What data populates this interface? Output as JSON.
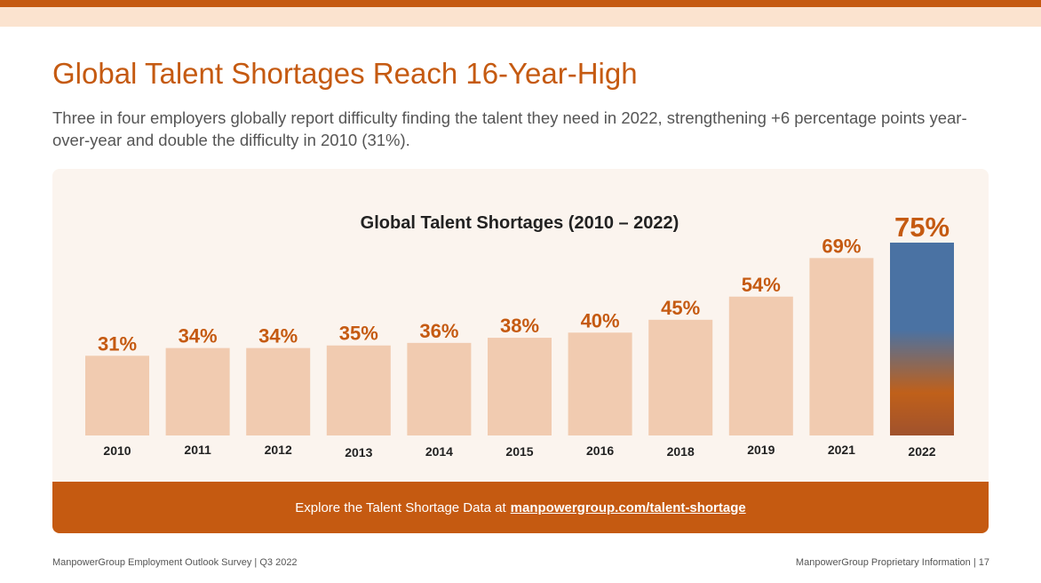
{
  "header": {
    "title": "Global Talent Shortages Reach 16-Year-High",
    "subtitle": "Three in four employers globally report difficulty finding the talent they need in 2022, strengthening  +6 percentage points year-over-year  and double the difficulty in 2010 (31%)."
  },
  "chart_data": {
    "type": "bar",
    "title": "Global Talent Shortages (2010 – 2022)",
    "categories": [
      "2010",
      "2011",
      "2012",
      "2013",
      "2014",
      "2015",
      "2016",
      "2018",
      "2019",
      "2021",
      "2022"
    ],
    "values": [
      31,
      34,
      34,
      35,
      36,
      38,
      40,
      45,
      54,
      69,
      75
    ],
    "labels": [
      "31%",
      "34%",
      "34%",
      "35%",
      "36%",
      "38%",
      "40%",
      "45%",
      "54%",
      "69%",
      "75%"
    ],
    "unit": "%",
    "xlabel": "",
    "ylabel": "",
    "ylim": [
      0,
      75
    ],
    "highlight_category": "2022",
    "colors": {
      "bar": "#f1cbb0",
      "label": "#c55a11",
      "highlight_top": "#4a72a3",
      "highlight_mid": "#c0601a",
      "highlight_bottom": "#a0522d"
    }
  },
  "cta": {
    "text": "Explore the Talent Shortage Data at",
    "link": "manpowergroup.com/talent-shortage"
  },
  "footer": {
    "left": "ManpowerGroup  Employment Outlook Survey  |  Q3 2022",
    "right": "ManpowerGroup  Proprietary Information  |  17"
  }
}
